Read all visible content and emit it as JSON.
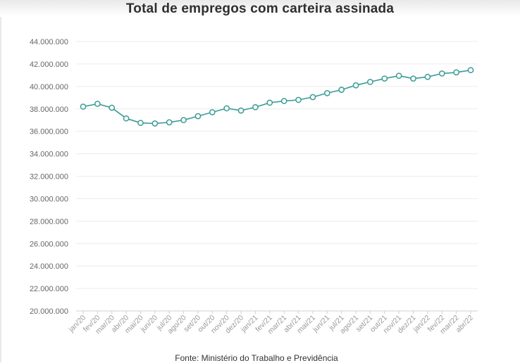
{
  "title": "Total de empregos com carteira assinada",
  "source": "Fonte: Ministério do Trabalho e Previdência",
  "colors": {
    "line": "#3a9c96",
    "grid": "#ececec",
    "marker_fill": "#ffffff"
  },
  "chart_data": {
    "type": "line",
    "title": "Total de empregos com carteira assinada",
    "xlabel": "",
    "ylabel": "",
    "ylim": [
      20000000,
      44000000
    ],
    "yticks": [
      {
        "value": 20000000,
        "label": "20.000.000"
      },
      {
        "value": 22000000,
        "label": "22.000.000"
      },
      {
        "value": 24000000,
        "label": "24.000.000"
      },
      {
        "value": 26000000,
        "label": "26.000.000"
      },
      {
        "value": 28000000,
        "label": "28.000.000"
      },
      {
        "value": 30000000,
        "label": "30.000.000"
      },
      {
        "value": 32000000,
        "label": "32.000.000"
      },
      {
        "value": 34000000,
        "label": "34.000.000"
      },
      {
        "value": 36000000,
        "label": "36.000.000"
      },
      {
        "value": 38000000,
        "label": "38.000.000"
      },
      {
        "value": 40000000,
        "label": "40.000.000"
      },
      {
        "value": 42000000,
        "label": "42.000.000"
      },
      {
        "value": 44000000,
        "label": "44.000.000"
      }
    ],
    "categories": [
      "jan/20",
      "fev/20",
      "mar/20",
      "abr/20",
      "mai/20",
      "jun/20",
      "jul/20",
      "ago/20",
      "set/20",
      "out/20",
      "nov/20",
      "dez/20",
      "jan/21",
      "fev/21",
      "mar/21",
      "abr/21",
      "mai/21",
      "jun/21",
      "jul/21",
      "ago/21",
      "set/21",
      "out/21",
      "nov/21",
      "dez/21",
      "jan/22",
      "fev/22",
      "mar/22",
      "abr/22"
    ],
    "series": [
      {
        "values": [
          38200000,
          38450000,
          38100000,
          37150000,
          36750000,
          36700000,
          36800000,
          37000000,
          37350000,
          37700000,
          38050000,
          37850000,
          38150000,
          38550000,
          38700000,
          38800000,
          39050000,
          39400000,
          39700000,
          40100000,
          40400000,
          40700000,
          40950000,
          40700000,
          40850000,
          41150000,
          41250000,
          41450000
        ]
      }
    ],
    "grid": true,
    "legend": "none"
  }
}
